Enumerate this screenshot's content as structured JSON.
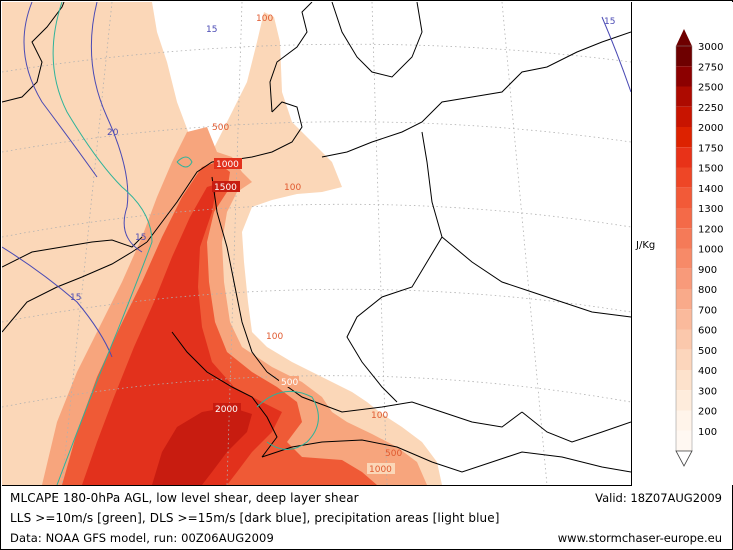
{
  "caption": {
    "line1": "MLCAPE 180-0hPa AGL, low level shear, deep layer shear",
    "valid": "Valid: 18Z07AUG2009",
    "line2": "LLS >=10m/s [green], DLS >=15m/s [dark blue], precipitation areas [light blue]",
    "line3": "Data: NOAA GFS model, run: 00Z06AUG2009",
    "site": "www.stormchaser-europe.eu"
  },
  "legend": {
    "unit": "J/Kg",
    "levels": [
      "3000",
      "2750",
      "2500",
      "2250",
      "2000",
      "1750",
      "1500",
      "1400",
      "1300",
      "1200",
      "1000",
      "900",
      "800",
      "700",
      "600",
      "500",
      "400",
      "300",
      "200",
      "100"
    ],
    "colors": [
      "#6e0000",
      "#8c0000",
      "#ad0a00",
      "#c81400",
      "#dd2200",
      "#e83218",
      "#ee4626",
      "#f25a38",
      "#f46a48",
      "#f57a58",
      "#f78a68",
      "#f89a7a",
      "#f9aa8a",
      "#faba9c",
      "#fbc8ac",
      "#fcd6bc",
      "#fde2cc",
      "#feecdc",
      "#fff4ea",
      "#fff8f2"
    ],
    "top_color": "#6e0000"
  },
  "contours": {
    "cape_labels": [
      "100",
      "500",
      "1000",
      "1500",
      "100",
      "100",
      "500",
      "2000",
      "100",
      "500",
      "1000"
    ],
    "shear_labels": [
      "15",
      "20",
      "15",
      "15",
      "15"
    ]
  },
  "colors": {
    "cape_light": "#fbd7b8",
    "cape_mid": "#f7a57d",
    "cape_strong": "#ef5a36",
    "cape_core": "#e2311c",
    "cape_max": "#c81c10",
    "dls": "#4a4ab4",
    "lls": "#2eb39a",
    "grid": "#b0b0b0",
    "coast": "#000000"
  }
}
